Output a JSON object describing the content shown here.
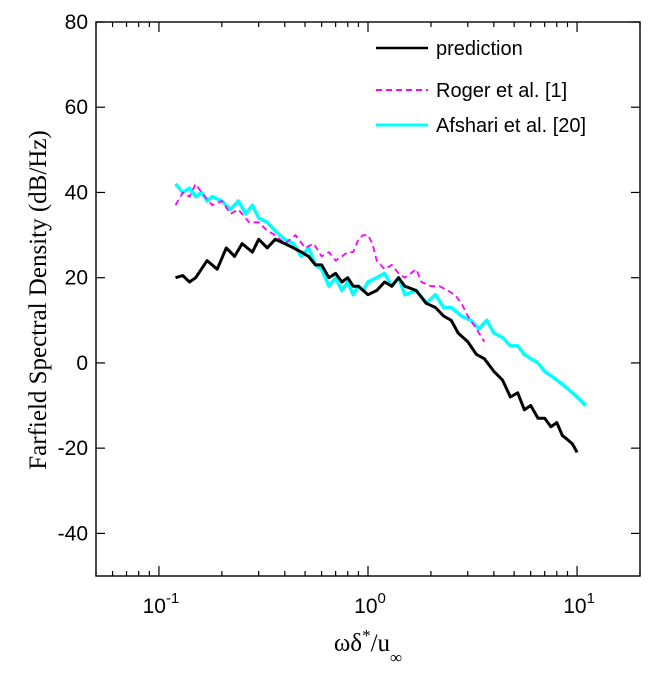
{
  "chart_data": {
    "type": "line",
    "title": "",
    "xlabel_parts": {
      "omega": "ωδ",
      "star": "*",
      "slash_u": "/u",
      "inf": "∞"
    },
    "ylabel": "Farfield Spectral Density (dB/Hz)",
    "xscale": "log",
    "xlim": [
      0.05,
      20
    ],
    "ylim": [
      -50,
      80
    ],
    "yticks": [
      80,
      60,
      40,
      20,
      0,
      -20,
      -40
    ],
    "ytick_labels": [
      "80",
      "60",
      "40",
      "20",
      "0",
      "-20",
      "-40"
    ],
    "xticks": [
      0.1,
      1,
      10
    ],
    "xtick_labels": [
      {
        "base": "10",
        "exp": "-1"
      },
      {
        "base": "10",
        "exp": "0"
      },
      {
        "base": "10",
        "exp": "1"
      }
    ],
    "grid": false,
    "legend_position": "top-right",
    "series": [
      {
        "name": "prediction",
        "color": "#000000",
        "dash": "solid",
        "x": [
          0.12,
          0.13,
          0.14,
          0.15,
          0.17,
          0.19,
          0.21,
          0.23,
          0.25,
          0.28,
          0.3,
          0.33,
          0.36,
          0.4,
          0.44,
          0.48,
          0.52,
          0.56,
          0.6,
          0.65,
          0.7,
          0.75,
          0.8,
          0.85,
          0.9,
          0.95,
          1.0,
          1.1,
          1.2,
          1.3,
          1.4,
          1.5,
          1.7,
          1.9,
          2.1,
          2.3,
          2.5,
          2.7,
          3.0,
          3.3,
          3.6,
          4.0,
          4.4,
          4.8,
          5.2,
          5.6,
          6.0,
          6.5,
          7.0,
          7.5,
          8.0,
          8.5,
          9.0,
          9.5,
          10.0
        ],
        "y": [
          20,
          20.5,
          19,
          20,
          24,
          22,
          27,
          25,
          28,
          26,
          29,
          27,
          29,
          28,
          27,
          26,
          25,
          23,
          23,
          20,
          21,
          19,
          20,
          18,
          18,
          17,
          16,
          17,
          19,
          18,
          20,
          18,
          17,
          14,
          13,
          11,
          10,
          7,
          5,
          2,
          1,
          -2,
          -4,
          -8,
          -7,
          -11,
          -10,
          -13,
          -13,
          -15,
          -14,
          -17,
          -18,
          -19,
          -21
        ]
      },
      {
        "name": "Roger et al. [1]",
        "color": "#ff00ff",
        "dash": "dashed",
        "x": [
          0.12,
          0.13,
          0.14,
          0.15,
          0.16,
          0.18,
          0.2,
          0.22,
          0.24,
          0.27,
          0.3,
          0.33,
          0.36,
          0.4,
          0.45,
          0.5,
          0.55,
          0.6,
          0.65,
          0.7,
          0.75,
          0.8,
          0.85,
          0.9,
          0.95,
          1.0,
          1.05,
          1.1,
          1.2,
          1.3,
          1.4,
          1.5,
          1.6,
          1.7,
          1.8,
          2.0,
          2.2,
          2.4,
          2.6,
          2.8,
          3.0,
          3.3,
          3.6
        ],
        "y": [
          37,
          40,
          39,
          42,
          40,
          37,
          38,
          35,
          36,
          33,
          33,
          31,
          30,
          28,
          30,
          27,
          28,
          25,
          26,
          24,
          25,
          26,
          26,
          29,
          30,
          30,
          28,
          24,
          22,
          23,
          21,
          20,
          21,
          22,
          19,
          18,
          18,
          17,
          16,
          14,
          11,
          8,
          5
        ]
      },
      {
        "name": "Afshari et al. [20]",
        "color": "#00ffff",
        "dash": "solid",
        "x": [
          0.12,
          0.13,
          0.14,
          0.15,
          0.16,
          0.17,
          0.18,
          0.2,
          0.22,
          0.24,
          0.26,
          0.28,
          0.3,
          0.33,
          0.36,
          0.4,
          0.44,
          0.48,
          0.52,
          0.56,
          0.6,
          0.65,
          0.7,
          0.75,
          0.8,
          0.85,
          0.9,
          0.95,
          1.0,
          1.1,
          1.2,
          1.3,
          1.4,
          1.5,
          1.7,
          1.9,
          2.1,
          2.3,
          2.5,
          2.8,
          3.1,
          3.4,
          3.7,
          4.0,
          4.4,
          4.8,
          5.2,
          5.6,
          6.0,
          6.5,
          7.0,
          7.5,
          8.0,
          8.5,
          9.0,
          9.5,
          10.0,
          10.5,
          11.0
        ],
        "y": [
          42,
          40,
          41,
          39,
          40,
          38,
          39,
          38,
          36,
          38,
          35,
          37,
          34,
          33,
          31,
          29,
          28,
          25,
          27,
          23,
          22,
          18,
          20,
          17,
          19,
          16,
          18,
          17,
          19,
          20,
          21,
          18,
          20,
          16,
          17,
          14,
          16,
          13,
          13,
          11,
          10,
          8,
          10,
          7,
          6,
          4,
          4,
          2,
          1,
          0,
          -2,
          -3,
          -4,
          -5,
          -6,
          -7,
          -8,
          -9,
          -10
        ]
      }
    ]
  }
}
